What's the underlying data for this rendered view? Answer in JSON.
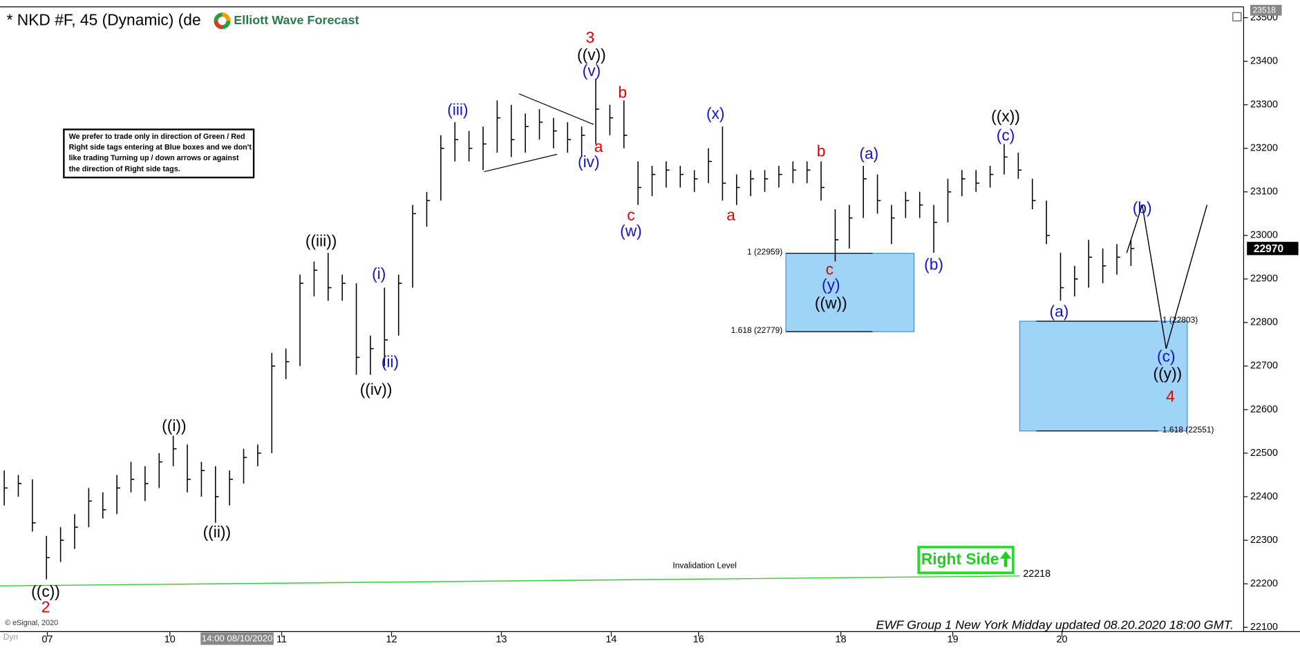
{
  "chart_data": {
    "type": "ohlc",
    "title": "* NKD #F, 45 (Dynamic) (de",
    "logo": "Elliott Wave Forecast",
    "color": "#000000",
    "high": [
      22460,
      22450,
      22440,
      22310,
      22330,
      22360,
      22420,
      22410,
      22450,
      22480,
      22470,
      22500,
      22540,
      22520,
      22480,
      22470,
      22460,
      22510,
      22520,
      22730,
      22740,
      22910,
      22940,
      22960,
      22910,
      22890,
      22770,
      22880,
      22910,
      23070,
      23100,
      23230,
      23260,
      23240,
      23250,
      23310,
      23300,
      23280,
      23290,
      23270,
      23260,
      23250,
      23360,
      23300,
      23310,
      23170,
      23160,
      23170,
      23160,
      23150,
      23200,
      23250,
      23140,
      23150,
      23150,
      23160,
      23170,
      23170,
      23170,
      23060,
      23070,
      23160,
      23140,
      23070,
      23100,
      23100,
      23070,
      23130,
      23150,
      23150,
      23160,
      23210,
      23190,
      23130,
      23080,
      22960,
      22930,
      22990,
      22970,
      22980,
      22990
    ],
    "low": [
      22380,
      22400,
      22320,
      22210,
      22250,
      22280,
      22330,
      22350,
      22360,
      22410,
      22390,
      22420,
      22470,
      22410,
      22400,
      22340,
      22380,
      22430,
      22470,
      22500,
      22670,
      22700,
      22860,
      22850,
      22850,
      22680,
      22680,
      22700,
      22770,
      22880,
      23020,
      23080,
      23170,
      23170,
      23150,
      23190,
      23180,
      23190,
      23220,
      23200,
      23190,
      23180,
      23210,
      23230,
      23200,
      23070,
      23090,
      23110,
      23110,
      23100,
      23120,
      23080,
      23070,
      23090,
      23100,
      23110,
      23120,
      23120,
      23080,
      22940,
      22970,
      23040,
      23050,
      22980,
      23040,
      23040,
      22960,
      23030,
      23090,
      23100,
      23110,
      23140,
      23130,
      23060,
      22980,
      22850,
      22860,
      22880,
      22890,
      22910,
      22930
    ],
    "close": [
      22420,
      22430,
      22340,
      22260,
      22300,
      22330,
      22390,
      22370,
      22420,
      22440,
      22430,
      22480,
      22510,
      22440,
      22460,
      22400,
      22440,
      22490,
      22500,
      22700,
      22710,
      22890,
      22920,
      22880,
      22890,
      22720,
      22740,
      22760,
      22890,
      23050,
      23080,
      23200,
      23220,
      23200,
      23210,
      23270,
      23220,
      23250,
      23260,
      23240,
      23220,
      23230,
      23290,
      23270,
      23230,
      23110,
      23140,
      23150,
      23140,
      23130,
      23170,
      23120,
      23110,
      23130,
      23130,
      23140,
      23150,
      23150,
      23110,
      22990,
      23040,
      23130,
      23080,
      23040,
      23080,
      23070,
      23030,
      23100,
      23130,
      23120,
      23140,
      23180,
      23150,
      23080,
      23000,
      22880,
      22900,
      22950,
      22930,
      22950,
      22970
    ],
    "xlim": [
      -0.3,
      88
    ],
    "ylim": [
      22075,
      23525
    ],
    "xticks": [
      {
        "value": 3.06,
        "label": "07"
      },
      {
        "value": 11.76,
        "label": "10"
      },
      {
        "value": 19.7,
        "label": "11"
      },
      {
        "value": 27.5,
        "label": "12"
      },
      {
        "value": 35.3,
        "label": "13"
      },
      {
        "value": 43.1,
        "label": "14"
      },
      {
        "value": 49.3,
        "label": "16"
      },
      {
        "value": 59.4,
        "label": "18"
      },
      {
        "value": 67.35,
        "label": "19"
      },
      {
        "value": 75.1,
        "label": "20"
      }
    ],
    "yticks": [
      22100,
      22200,
      22300,
      22400,
      22500,
      22600,
      22700,
      22800,
      22900,
      23000,
      23100,
      23200,
      23300,
      23400,
      23500
    ],
    "top_price_label": 23518,
    "last_price": 22970,
    "cursor_label": "14:00 08/10/2020",
    "projection": {
      "color": "#000000",
      "x": [
        79.7,
        80.8,
        82.5,
        85.4
      ],
      "values": [
        22960,
        23070,
        22740,
        23070
      ]
    },
    "zones": [
      {
        "color": "#9fd3f7",
        "label_side": "left",
        "x": [
          55.5,
          64.6
        ],
        "levels": [
          {
            "value": 22959,
            "label": "1 (22959)"
          },
          {
            "value": 22779,
            "label": "1.618 (22779)"
          }
        ]
      },
      {
        "color": "#9fd3f7",
        "label_side": "right",
        "x": [
          72.1,
          84
        ],
        "levels": [
          {
            "value": 22803,
            "label": "1 (22803)"
          },
          {
            "value": 22551,
            "label": "1.618 (22551)"
          }
        ]
      }
    ],
    "invalidation": {
      "value": 22218,
      "label": "Invalidation Level",
      "x_end": 72.1,
      "color": "#33cc33"
    },
    "right_side": "Right Side",
    "note": [
      "We prefer to trade only in direction of Green / Red",
      "Right side tags entering at Blue boxes and we don't",
      "like trading Turning up / down arrows or against",
      "the direction of Right side tags."
    ],
    "annotations": [
      {
        "text": "((c))",
        "x": 2.94,
        "y": 22180,
        "color": "#000000"
      },
      {
        "text": "2",
        "x": 2.94,
        "y": 22144,
        "color": "#e00000"
      },
      {
        "text": "((i))",
        "x": 12.06,
        "y": 22560,
        "color": "#000000"
      },
      {
        "text": "((ii))",
        "x": 15.1,
        "y": 22316,
        "color": "#000000"
      },
      {
        "text": "((iii))",
        "x": 22.5,
        "y": 22985,
        "color": "#000000"
      },
      {
        "text": "((iv))",
        "x": 26.4,
        "y": 22644,
        "color": "#000000"
      },
      {
        "text": "(i)",
        "x": 26.6,
        "y": 22909,
        "color": "#1515c8"
      },
      {
        "text": "(ii)",
        "x": 27.4,
        "y": 22707,
        "color": "#1515c8"
      },
      {
        "text": "(iii)",
        "x": 32.2,
        "y": 23286,
        "color": "#1515c8"
      },
      {
        "text": "(iv)",
        "x": 41.5,
        "y": 23166,
        "color": "#1515c8"
      },
      {
        "text": "(v)",
        "x": 41.7,
        "y": 23376,
        "color": "#1515c8"
      },
      {
        "text": "((v))",
        "x": 41.7,
        "y": 23412,
        "color": "#000000"
      },
      {
        "text": "3",
        "x": 41.6,
        "y": 23452,
        "color": "#e00000"
      },
      {
        "text": "a",
        "x": 42.2,
        "y": 23201,
        "color": "#e00000"
      },
      {
        "text": "b",
        "x": 43.9,
        "y": 23326,
        "color": "#e00000"
      },
      {
        "text": "c",
        "x": 44.5,
        "y": 23044,
        "color": "#e00000"
      },
      {
        "text": "(w)",
        "x": 44.5,
        "y": 23008,
        "color": "#1515c8"
      },
      {
        "text": "(x)",
        "x": 50.5,
        "y": 23277,
        "color": "#1515c8"
      },
      {
        "text": "a",
        "x": 51.6,
        "y": 23044,
        "color": "#e00000"
      },
      {
        "text": "b",
        "x": 58,
        "y": 23191,
        "color": "#e00000"
      },
      {
        "text": "(a)",
        "x": 61.4,
        "y": 23185,
        "color": "#1515c8"
      },
      {
        "text": "c",
        "x": 58.6,
        "y": 22920,
        "color": "#e00000"
      },
      {
        "text": "(y)",
        "x": 58.7,
        "y": 22884,
        "color": "#1515c8"
      },
      {
        "text": "((w))",
        "x": 58.7,
        "y": 22842,
        "color": "#000000"
      },
      {
        "text": "(b)",
        "x": 66,
        "y": 22931,
        "color": "#1515c8"
      },
      {
        "text": "((x))",
        "x": 71.1,
        "y": 23271,
        "color": "#000000"
      },
      {
        "text": "(c)",
        "x": 71.1,
        "y": 23227,
        "color": "#1515c8"
      },
      {
        "text": "(a)",
        "x": 74.9,
        "y": 22823,
        "color": "#1515c8"
      },
      {
        "text": "(b)",
        "x": 80.8,
        "y": 23061,
        "color": "#1515c8"
      },
      {
        "text": "(c)",
        "x": 82.5,
        "y": 22720,
        "color": "#1515c8"
      },
      {
        "text": "((y))",
        "x": 82.6,
        "y": 22680,
        "color": "#000000"
      },
      {
        "text": "4",
        "x": 82.8,
        "y": 22628,
        "color": "#e00000"
      }
    ],
    "copyright": "© eSignal, 2020",
    "dyn": "Dyn",
    "footer": "EWF Group 1 New York Midday updated 08.20.2020 18:00 GMT."
  }
}
